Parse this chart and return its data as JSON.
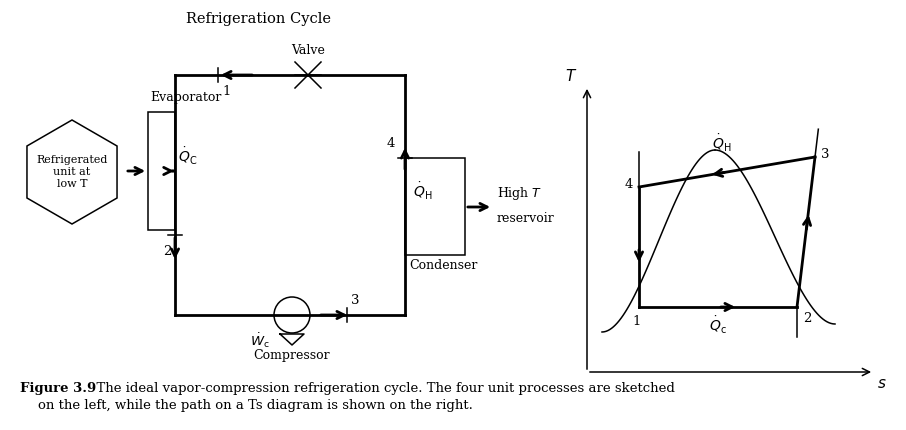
{
  "title": "Refrigeration Cycle",
  "valve_label": "Valve",
  "evaporator_label": "Evaporator",
  "condenser_label": "Condenser",
  "compressor_label": "Compressor",
  "refrigerated_label": [
    "Refrigerated",
    "unit at",
    "low T"
  ],
  "high_T_label": [
    "High T",
    "reservoir"
  ],
  "figure_caption_bold": "Figure 3.9",
  "figure_caption": "  The ideal vapor-compression refrigeration cycle. The four unit processes are sketched\non the left, while the path on a Ts diagram is shown on the right.",
  "line_color": "#000000",
  "bg_color": "#ffffff",
  "lw_main": 2.0,
  "lw_thin": 1.1
}
